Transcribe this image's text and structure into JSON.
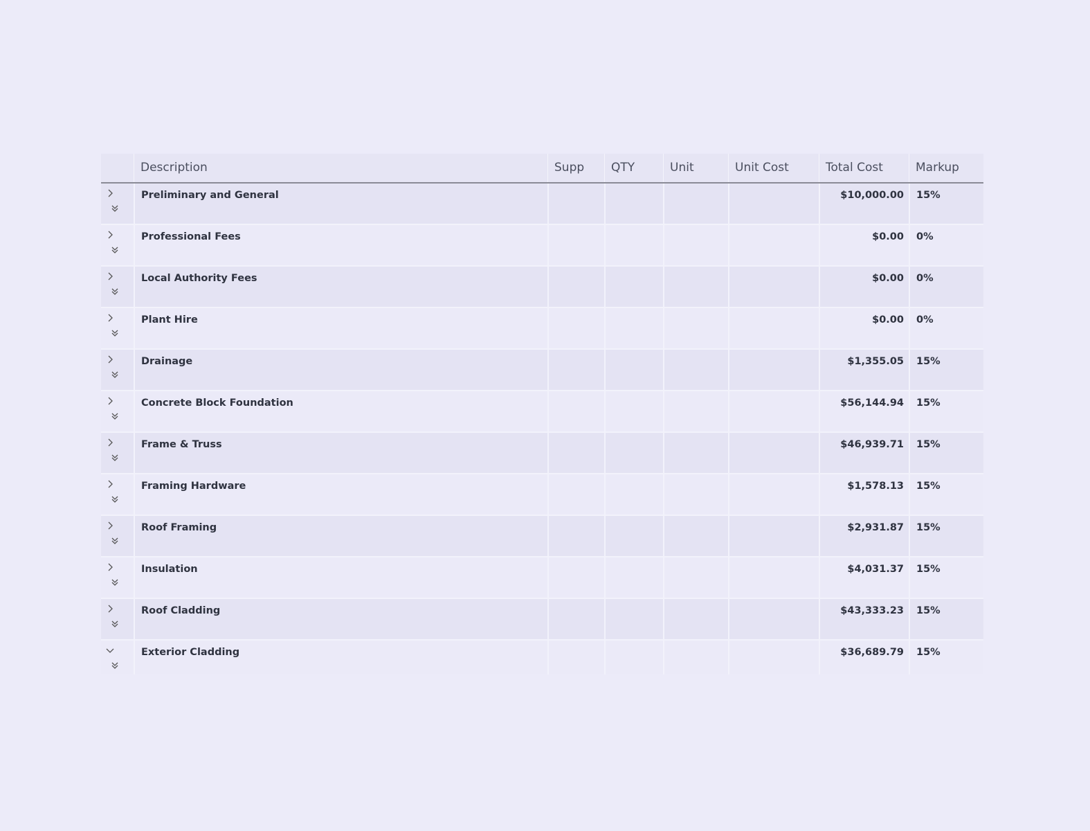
{
  "columns": [
    "",
    "Description",
    "Supp",
    "QTY",
    "Unit",
    "Unit Cost",
    "Total Cost",
    "Markup"
  ],
  "rows": [
    {
      "description": "Preliminary and General",
      "total_cost": "$10,000.00",
      "markup": "15%",
      "expanded": false
    },
    {
      "description": "Professional Fees",
      "total_cost": "$0.00",
      "markup": "0%",
      "expanded": false
    },
    {
      "description": "Local Authority Fees",
      "total_cost": "$0.00",
      "markup": "0%",
      "expanded": false
    },
    {
      "description": "Plant Hire",
      "total_cost": "$0.00",
      "markup": "0%",
      "expanded": false
    },
    {
      "description": "Drainage",
      "total_cost": "$1,355.05",
      "markup": "15%",
      "expanded": false
    },
    {
      "description": "Concrete Block Foundation",
      "total_cost": "$56,144.94",
      "markup": "15%",
      "expanded": false
    },
    {
      "description": "Frame & Truss",
      "total_cost": "$46,939.71",
      "markup": "15%",
      "expanded": false
    },
    {
      "description": "Framing Hardware",
      "total_cost": "$1,578.13",
      "markup": "15%",
      "expanded": false
    },
    {
      "description": "Roof Framing",
      "total_cost": "$2,931.87",
      "markup": "15%",
      "expanded": false
    },
    {
      "description": "Insulation",
      "total_cost": "$4,031.37",
      "markup": "15%",
      "expanded": false
    },
    {
      "description": "Roof Cladding",
      "total_cost": "$43,333.23",
      "markup": "15%",
      "expanded": false
    },
    {
      "description": "Exterior Cladding",
      "total_cost": "$36,689.79",
      "markup": "15%",
      "expanded": true
    }
  ]
}
